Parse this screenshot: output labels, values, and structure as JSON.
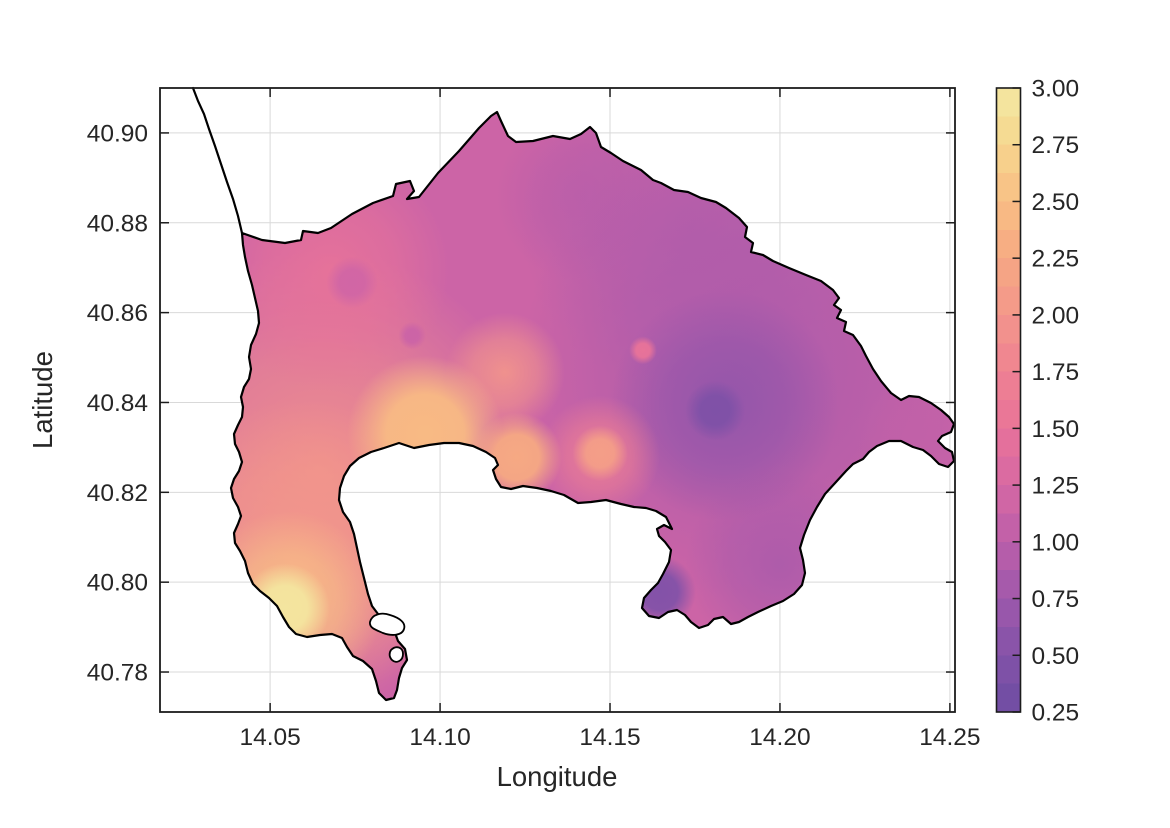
{
  "figure": {
    "background": "#ffffff",
    "axis_color": "#1c1c1c",
    "grid_color": "#d9d9d9",
    "text_color": "#262626",
    "outline_color": "#000000"
  },
  "chart_data": {
    "type": "heatmap",
    "title": "",
    "xlabel": "Longitude",
    "ylabel": "Latitude",
    "xlim": [
      14.0176,
      14.2515
    ],
    "ylim": [
      40.7711,
      40.91
    ],
    "clim": [
      0.25,
      3.0
    ],
    "grid": true,
    "xticks": {
      "values": [
        14.05,
        14.1,
        14.15,
        14.2,
        14.25
      ],
      "labels": [
        "14.05",
        "14.10",
        "14.15",
        "14.20",
        "14.25"
      ]
    },
    "yticks": {
      "values": [
        40.78,
        40.8,
        40.82,
        40.84,
        40.86,
        40.88,
        40.9
      ],
      "labels": [
        "40.78",
        "40.80",
        "40.82",
        "40.84",
        "40.86",
        "40.88",
        "40.90"
      ]
    },
    "colorbar": {
      "position": "right",
      "min": 0.25,
      "max": 3.0,
      "band_step": 0.125,
      "tick_values": [
        0.25,
        0.5,
        0.75,
        1.0,
        1.25,
        1.5,
        1.75,
        2.0,
        2.25,
        2.5,
        2.75,
        3.0
      ],
      "tick_labels": [
        "0.25",
        "0.50",
        "0.75",
        "1.00",
        "1.25",
        "1.50",
        "1.75",
        "2.00",
        "2.25",
        "2.50",
        "2.75",
        "3.00"
      ]
    },
    "colormap": {
      "anchors": [
        {
          "value": 0.25,
          "color": "#6E4DA3"
        },
        {
          "value": 0.5,
          "color": "#8352A8"
        },
        {
          "value": 0.75,
          "color": "#9F58AC"
        },
        {
          "value": 1.0,
          "color": "#BC5FA9"
        },
        {
          "value": 1.25,
          "color": "#D668A4"
        },
        {
          "value": 1.5,
          "color": "#E87399"
        },
        {
          "value": 1.75,
          "color": "#EF8292"
        },
        {
          "value": 2.0,
          "color": "#F3968B"
        },
        {
          "value": 2.25,
          "color": "#F6A983"
        },
        {
          "value": 2.5,
          "color": "#F8BE84"
        },
        {
          "value": 2.75,
          "color": "#F6D68E"
        },
        {
          "value": 3.0,
          "color": "#F3E9A3"
        }
      ]
    },
    "field": {
      "base_value": 1.15,
      "features": [
        {
          "name": "west-wash",
          "lon": 14.0647,
          "lat": 40.8249,
          "value": 1.95,
          "radius_deg": 0.0647,
          "spread": "soft"
        },
        {
          "name": "west-salmon-south",
          "lon": 14.0588,
          "lat": 40.8049,
          "value": 2.05,
          "radius_deg": 0.0471,
          "spread": "soft"
        },
        {
          "name": "nw-pink",
          "lon": 14.0676,
          "lat": 40.8693,
          "value": 1.5,
          "radius_deg": 0.0353,
          "spread": "soft"
        },
        {
          "name": "north-purple",
          "lon": 14.1412,
          "lat": 40.886,
          "value": 1.0,
          "radius_deg": 0.025,
          "spread": "soft"
        },
        {
          "name": "ne-purple",
          "lon": 14.1735,
          "lat": 40.8793,
          "value": 0.95,
          "radius_deg": 0.05,
          "spread": "soft"
        },
        {
          "name": "east-wash",
          "lon": 14.1926,
          "lat": 40.8482,
          "value": 0.85,
          "radius_deg": 0.0691,
          "spread": "soft"
        },
        {
          "name": "se-purple",
          "lon": 14.2,
          "lat": 40.8038,
          "value": 0.85,
          "radius_deg": 0.0279,
          "spread": "soft"
        },
        {
          "name": "promontory-magenta",
          "lon": 14.2412,
          "lat": 40.8327,
          "value": 1.05,
          "radius_deg": 0.0191,
          "spread": "soft"
        },
        {
          "name": "east-dark",
          "lon": 14.1838,
          "lat": 40.8393,
          "value": 0.62,
          "radius_deg": 0.0338,
          "spread": "soft"
        },
        {
          "name": "warm-plume-north",
          "lon": 14.1191,
          "lat": 40.8467,
          "value": 2.0,
          "radius_deg": 0.0176,
          "spread": "soft"
        },
        {
          "name": "warm-east-halo",
          "lon": 14.1471,
          "lat": 40.8282,
          "value": 1.7,
          "radius_deg": 0.0176,
          "spread": "soft"
        },
        {
          "name": "sw-hotspot-halo",
          "lon": 14.055,
          "lat": 40.7947,
          "value": 2.55,
          "radius_deg": 0.0279,
          "spread": "soft"
        },
        {
          "name": "warm-center",
          "lon": 14.0956,
          "lat": 40.8331,
          "value": 2.45,
          "radius_deg": 0.0229,
          "spread": "core"
        },
        {
          "name": "warm-east-1",
          "lon": 14.1226,
          "lat": 40.8278,
          "value": 2.25,
          "radius_deg": 0.0132,
          "spread": "core"
        },
        {
          "name": "warm-east-2",
          "lon": 14.1471,
          "lat": 40.8287,
          "value": 2.1,
          "radius_deg": 0.0082,
          "spread": "core"
        },
        {
          "name": "sw-hotspot-core",
          "lon": 14.0544,
          "lat": 40.7942,
          "value": 2.95,
          "radius_deg": 0.0132,
          "spread": "core"
        },
        {
          "name": "east-dark-core",
          "lon": 14.1809,
          "lat": 40.8382,
          "value": 0.45,
          "radius_deg": 0.0088,
          "spread": "core"
        },
        {
          "name": "nisida-dark",
          "lon": 14.1647,
          "lat": 40.7978,
          "value": 0.5,
          "radius_deg": 0.0106,
          "spread": "core"
        },
        {
          "name": "nw-purple-dot",
          "lon": 14.0741,
          "lat": 40.8667,
          "value": 1.2,
          "radius_deg": 0.0076,
          "spread": "core"
        },
        {
          "name": "magenta-dot",
          "lon": 14.0918,
          "lat": 40.8549,
          "value": 1.15,
          "radius_deg": 0.0041,
          "spread": "core"
        },
        {
          "name": "pink-dot",
          "lon": 14.1597,
          "lat": 40.8516,
          "value": 1.5,
          "radius_deg": 0.0041,
          "spread": "core"
        }
      ]
    }
  }
}
